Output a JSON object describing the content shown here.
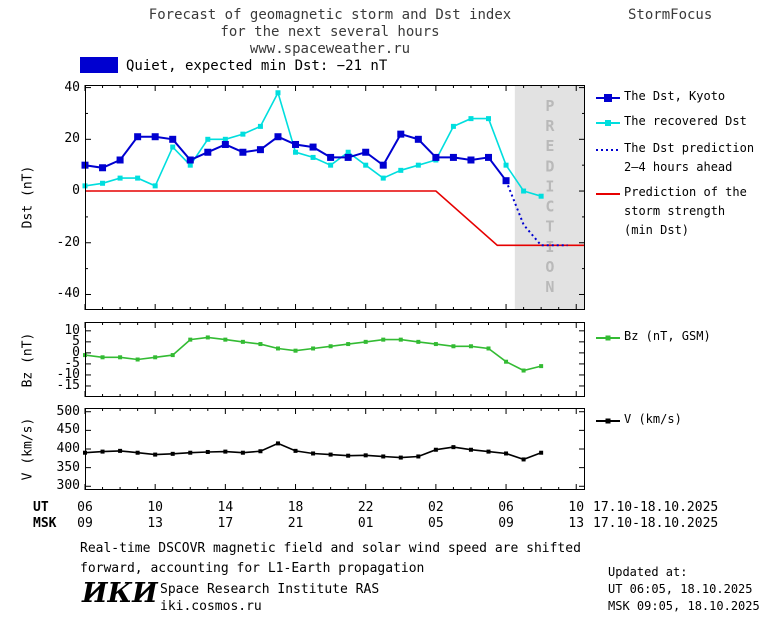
{
  "header": {
    "title_line1": "Forecast of geomagnetic storm and Dst index",
    "title_line2": "for the next several hours",
    "title_line3": "www.spaceweather.ru",
    "brand": "StormFocus"
  },
  "status": {
    "label": "Quiet, expected min Dst: −21 nT",
    "box_color": "#0000d0"
  },
  "legend_main": [
    {
      "lines": [
        "The Dst, Kyoto"
      ],
      "color": "#0000d0",
      "style": "solid",
      "marker": 8
    },
    {
      "lines": [
        "The recovered Dst"
      ],
      "color": "#00dede",
      "style": "solid",
      "marker": 6
    },
    {
      "lines": [
        "The Dst prediction",
        "2–4 hours ahead"
      ],
      "color": "#0000d0",
      "style": "dotted",
      "marker": 0
    },
    {
      "lines": [
        "Prediction of the",
        "storm strength",
        "(min Dst)"
      ],
      "color": "#e60000",
      "style": "solid",
      "marker": 0
    }
  ],
  "legend_bz": {
    "lines": [
      "Bz (nT, GSM)"
    ],
    "color": "#33bb33",
    "style": "solid",
    "marker": 5
  },
  "legend_v": {
    "lines": [
      "V (km/s)"
    ],
    "color": "#000000",
    "style": "solid",
    "marker": 5
  },
  "xaxis": {
    "ut_label": "UT",
    "msk_label": "MSK",
    "ut_ticks": [
      "06",
      "10",
      "14",
      "18",
      "22",
      "02",
      "06",
      "10"
    ],
    "msk_ticks": [
      "09",
      "13",
      "17",
      "21",
      "01",
      "05",
      "09",
      "13"
    ],
    "ut_range": "17.10-18.10.2025",
    "msk_range": "17.10-18.10.2025"
  },
  "footnote": {
    "line1": "Real-time DSCOVR magnetic field and solar wind speed are shifted",
    "line2": "forward, accounting for L1-Earth propagation"
  },
  "institute": {
    "logo": "ИКИ",
    "name": "Space Research Institute RAS",
    "url": "iki.cosmos.ru"
  },
  "updated": {
    "label": "Updated at:",
    "ut": "UT  06:05, 18.10.2025",
    "msk": "MSK 09:05, 18.10.2025"
  },
  "chart_data": [
    {
      "type": "line",
      "ylabel": "Dst (nT)",
      "ylim": [
        -46,
        41
      ],
      "yticks": [
        40,
        20,
        0,
        -20,
        -40
      ],
      "yticks_minor": [
        30,
        10,
        -10,
        -30
      ],
      "x_total_hours": 28.5,
      "xticks_hours": [
        0,
        4,
        8,
        12,
        16,
        20,
        24,
        28
      ],
      "prediction_band": {
        "start_hour": 24.5,
        "label": "PREDICTION"
      },
      "series": [
        {
          "name": "Prediction of the storm strength (min Dst)",
          "color": "#e60000",
          "width": 1.6,
          "x": [
            0,
            20,
            23.5,
            28.5
          ],
          "y": [
            0,
            0,
            -21,
            -21
          ]
        },
        {
          "name": "The recovered Dst",
          "color": "#00dede",
          "width": 1.6,
          "marker": 5,
          "x": [
            0,
            1,
            2,
            3,
            4,
            5,
            6,
            7,
            8,
            9,
            10,
            11,
            12,
            13,
            14,
            15,
            16,
            17,
            18,
            19,
            20,
            21,
            22,
            23,
            24,
            25,
            26
          ],
          "y": [
            2,
            3,
            5,
            5,
            2,
            17,
            10,
            20,
            20,
            22,
            25,
            38,
            15,
            13,
            10,
            15,
            10,
            5,
            8,
            10,
            12,
            25,
            28,
            28,
            10,
            0,
            -2
          ]
        },
        {
          "name": "The Dst prediction 2-4 hours ahead",
          "color": "#0000d0",
          "width": 2,
          "dash": "2,3",
          "x": [
            24,
            25,
            26,
            27.5
          ],
          "y": [
            4,
            -13,
            -21,
            -21
          ]
        },
        {
          "name": "The Dst, Kyoto",
          "color": "#0000d0",
          "width": 2,
          "marker": 7,
          "x": [
            0,
            1,
            2,
            3,
            4,
            5,
            6,
            7,
            8,
            9,
            10,
            11,
            12,
            13,
            14,
            15,
            16,
            17,
            18,
            19,
            20,
            21,
            22,
            23,
            24
          ],
          "y": [
            10,
            9,
            12,
            21,
            21,
            20,
            12,
            15,
            18,
            15,
            16,
            21,
            18,
            17,
            13,
            13,
            15,
            10,
            22,
            20,
            13,
            13,
            12,
            13,
            4
          ]
        }
      ]
    },
    {
      "type": "line",
      "ylabel": "Bz (nT)",
      "ylim": [
        -20,
        14
      ],
      "yticks": [
        10,
        5,
        0,
        -5,
        -10,
        -15
      ],
      "x_total_hours": 28.5,
      "xticks_hours": [
        0,
        4,
        8,
        12,
        16,
        20,
        24,
        28
      ],
      "series": [
        {
          "name": "Bz (nT, GSM)",
          "color": "#33bb33",
          "width": 1.6,
          "marker": 4,
          "x": [
            0,
            1,
            2,
            3,
            4,
            5,
            6,
            7,
            8,
            9,
            10,
            11,
            12,
            13,
            14,
            15,
            16,
            17,
            18,
            19,
            20,
            21,
            22,
            23,
            24,
            25,
            26
          ],
          "y": [
            -1,
            -2,
            -2,
            -3,
            -2,
            -1,
            6,
            7,
            6,
            5,
            4,
            2,
            1,
            2,
            3,
            4,
            5,
            6,
            6,
            5,
            4,
            3,
            3,
            2,
            -4,
            -8,
            -6
          ]
        }
      ]
    },
    {
      "type": "line",
      "ylabel": "V (km/s)",
      "ylim": [
        290,
        510
      ],
      "yticks": [
        500,
        450,
        400,
        350,
        300
      ],
      "x_total_hours": 28.5,
      "xticks_hours": [
        0,
        4,
        8,
        12,
        16,
        20,
        24,
        28
      ],
      "series": [
        {
          "name": "V (km/s)",
          "color": "#000000",
          "width": 1.6,
          "marker": 4,
          "x": [
            0,
            1,
            2,
            3,
            4,
            5,
            6,
            7,
            8,
            9,
            10,
            11,
            12,
            13,
            14,
            15,
            16,
            17,
            18,
            19,
            20,
            21,
            22,
            23,
            24,
            25,
            26
          ],
          "y": [
            390,
            393,
            395,
            390,
            385,
            387,
            390,
            392,
            393,
            390,
            394,
            415,
            395,
            388,
            385,
            382,
            383,
            380,
            377,
            380,
            398,
            405,
            398,
            393,
            388,
            372,
            390
          ]
        }
      ]
    }
  ]
}
